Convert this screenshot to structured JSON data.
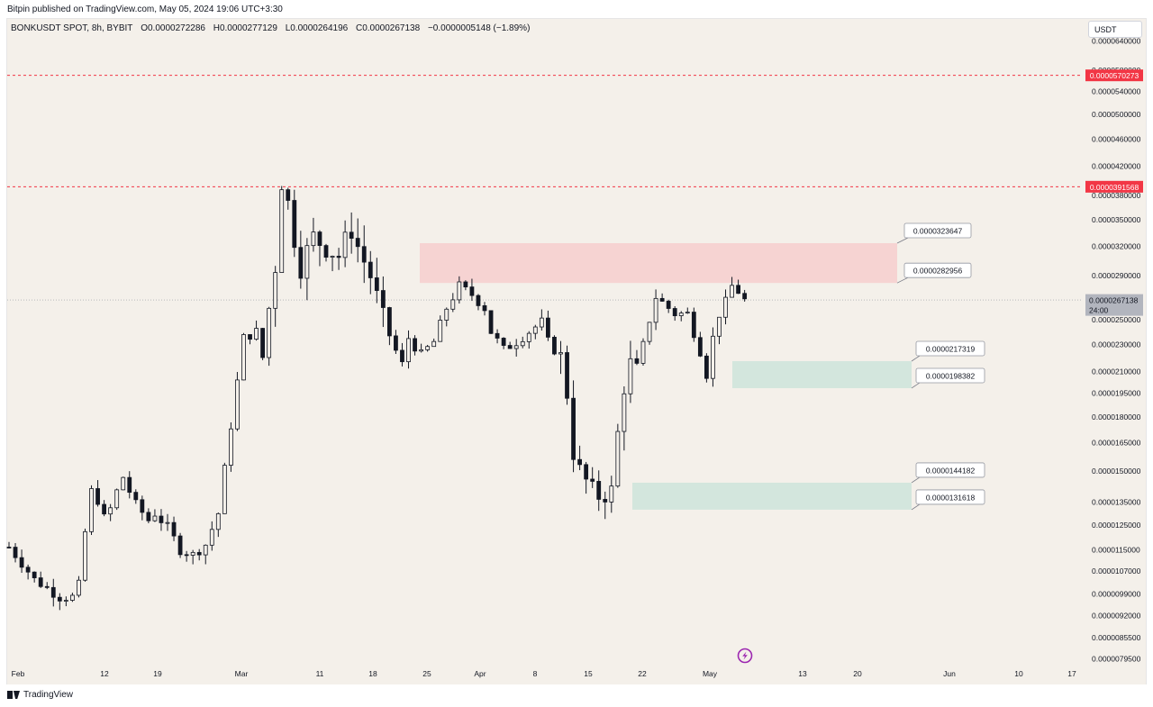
{
  "header": {
    "published": "Bitpin published on TradingView.com, May 05, 2024 19:06 UTC+3:30"
  },
  "symbol_info": {
    "name": "BONKUSDT SPOT, 8h, BYBIT",
    "open": "O0.0000272286",
    "high": "H0.0000277129",
    "low": "L0.0000264196",
    "close": "C0.0000267138",
    "change": "−0.0000005148 (−1.89%)"
  },
  "currency_button": "USDT",
  "footer": {
    "brand": "TradingView"
  },
  "colors": {
    "background": "#f4f0ea",
    "candle": "#131722",
    "resistance_zone": "#f6d3d2",
    "support_zone": "#d3e6dd",
    "alert_line": "#f23645",
    "price_tag": "#b2b5be"
  },
  "chart_data": {
    "type": "candlestick",
    "y_scale": "log",
    "y_range": [
      7.8e-06,
      6.9e-05
    ],
    "y_ticks": [
      "0.0000640000",
      "0.0000580000",
      "0.0000540000",
      "0.0000500000",
      "0.0000460000",
      "0.0000420000",
      "0.0000380000",
      "0.0000350000",
      "0.0000320000",
      "0.0000290000",
      "0.0000250000",
      "0.0000230000",
      "0.0000210000",
      "0.0000195000",
      "0.0000180000",
      "0.0000165000",
      "0.0000150000",
      "0.0000135000",
      "0.0000125000",
      "0.0000115000",
      "0.0000107000",
      "0.0000099000",
      "0.0000092000",
      "0.0000085500",
      "0.0000079500"
    ],
    "x_ticks": [
      "Feb",
      "12",
      "19",
      "Mar",
      "11",
      "18",
      "25",
      "Apr",
      "8",
      "15",
      "22",
      "May",
      "13",
      "20",
      "Jun",
      "10",
      "17"
    ],
    "horizontal_alert_lines": [
      {
        "value": 5.70273e-05,
        "label": "0.0000570273"
      },
      {
        "value": 3.91568e-05,
        "label": "0.0000391568"
      }
    ],
    "current_price": {
      "value": 2.67138e-05,
      "label": "0.0000267138",
      "countdown": "24:00"
    },
    "zones": [
      {
        "kind": "resistance",
        "top": 3.23647e-05,
        "bottom": 2.82956e-05,
        "top_label": "0.0000323647",
        "bottom_label": "0.0000282956"
      },
      {
        "kind": "support",
        "top": 2.17319e-05,
        "bottom": 1.98382e-05,
        "top_label": "0.0000217319",
        "bottom_label": "0.0000198382"
      },
      {
        "kind": "support",
        "top": 1.44182e-05,
        "bottom": 1.31618e-05,
        "top_label": "0.0000144182",
        "bottom_label": "0.0000131618"
      }
    ],
    "price_path": [
      [
        0,
        1.16e-05
      ],
      [
        2,
        1.1e-05
      ],
      [
        4,
        1.04e-05
      ],
      [
        6,
        1.01e-05
      ],
      [
        8,
        9.8e-06
      ],
      [
        10,
        9.8e-06
      ],
      [
        11,
        1.02e-05
      ],
      [
        12,
        1.22e-05
      ],
      [
        13,
        1.4e-05
      ],
      [
        14,
        1.36e-05
      ],
      [
        15,
        1.28e-05
      ],
      [
        16,
        1.32e-05
      ],
      [
        17,
        1.4e-05
      ],
      [
        18,
        1.47e-05
      ],
      [
        19,
        1.4e-05
      ],
      [
        20,
        1.34e-05
      ],
      [
        22,
        1.27e-05
      ],
      [
        23,
        1.3e-05
      ],
      [
        25,
        1.24e-05
      ],
      [
        27,
        1.15e-05
      ],
      [
        29,
        1.13e-05
      ],
      [
        31,
        1.17e-05
      ],
      [
        33,
        1.3e-05
      ],
      [
        35,
        1.75e-05
      ],
      [
        37,
        2.35e-05
      ],
      [
        39,
        2.4e-05
      ],
      [
        40,
        2.2e-05
      ],
      [
        41,
        2.6e-05
      ],
      [
        42,
        3e-05
      ],
      [
        43,
        4e-05
      ],
      [
        44,
        3.7e-05
      ],
      [
        45,
        3.3e-05
      ],
      [
        46,
        3e-05
      ],
      [
        48,
        3.3e-05
      ],
      [
        50,
        3.2e-05
      ],
      [
        52,
        3.1e-05
      ],
      [
        54,
        3.4e-05
      ],
      [
        55,
        3.2e-05
      ],
      [
        57,
        2.9e-05
      ],
      [
        59,
        2.5e-05
      ],
      [
        61,
        2.25e-05
      ],
      [
        62,
        2.15e-05
      ],
      [
        63,
        2.35e-05
      ],
      [
        65,
        2.22e-05
      ],
      [
        67,
        2.32e-05
      ],
      [
        69,
        2.6e-05
      ],
      [
        71,
        2.8e-05
      ],
      [
        73,
        2.72e-05
      ],
      [
        75,
        2.6e-05
      ],
      [
        76,
        2.4e-05
      ],
      [
        78,
        2.26e-05
      ],
      [
        80,
        2.32e-05
      ],
      [
        82,
        2.4e-05
      ],
      [
        84,
        2.48e-05
      ],
      [
        85,
        2.32e-05
      ],
      [
        87,
        2.2e-05
      ],
      [
        88,
        1.95e-05
      ],
      [
        89,
        1.6e-05
      ],
      [
        90,
        1.5e-05
      ],
      [
        91,
        1.45e-05
      ],
      [
        92,
        1.4e-05
      ],
      [
        93,
        1.38e-05
      ],
      [
        95,
        1.4e-05
      ],
      [
        96,
        1.7e-05
      ],
      [
        97,
        2e-05
      ],
      [
        98,
        2.15e-05
      ],
      [
        99,
        2.1e-05
      ],
      [
        101,
        2.5e-05
      ],
      [
        102,
        2.7e-05
      ],
      [
        103,
        2.65e-05
      ],
      [
        105,
        2.55e-05
      ],
      [
        107,
        2.55e-05
      ],
      [
        109,
        2.25e-05
      ],
      [
        110,
        2.08e-05
      ],
      [
        111,
        2.35e-05
      ],
      [
        112,
        2.55e-05
      ],
      [
        113,
        2.65e-05
      ],
      [
        114,
        2.8e-05
      ],
      [
        115,
        2.75e-05
      ],
      [
        116,
        2.67e-05
      ]
    ]
  }
}
